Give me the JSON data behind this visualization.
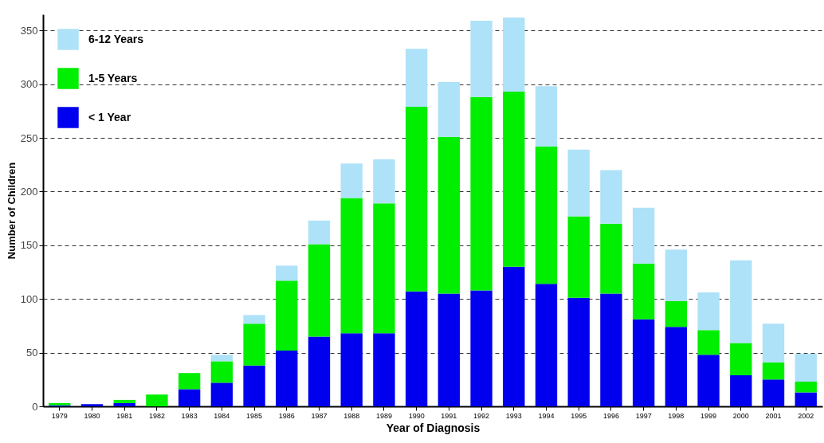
{
  "chart_data": {
    "type": "bar",
    "stacked": true,
    "xlabel": "Year of Diagnosis",
    "ylabel": "Number of Children",
    "categories": [
      "1979",
      "1980",
      "1981",
      "1982",
      "1983",
      "1984",
      "1985",
      "1986",
      "1987",
      "1988",
      "1989",
      "1990",
      "1991",
      "1992",
      "1993",
      "1994",
      "1995",
      "1996",
      "1997",
      "1998",
      "1999",
      "2000",
      "2001",
      "2002"
    ],
    "series": [
      {
        "name": "< 1 Year",
        "color": "#0000ee",
        "values": [
          1,
          2,
          3,
          0,
          16,
          22,
          38,
          52,
          65,
          68,
          68,
          107,
          105,
          108,
          130,
          114,
          101,
          105,
          81,
          74,
          48,
          29,
          25,
          13
        ]
      },
      {
        "name": "1-5 Years",
        "color": "#00ee00",
        "values": [
          2,
          0,
          3,
          11,
          15,
          20,
          39,
          65,
          86,
          126,
          121,
          172,
          146,
          180,
          163,
          128,
          76,
          65,
          52,
          24,
          23,
          30,
          16,
          10
        ]
      },
      {
        "name": "6-12 Years",
        "color": "#aee2f8",
        "values": [
          0,
          0,
          0,
          0,
          0,
          6,
          8,
          14,
          22,
          32,
          41,
          54,
          51,
          71,
          69,
          56,
          62,
          50,
          52,
          48,
          35,
          77,
          36,
          26
        ]
      }
    ],
    "ylim": [
      0,
      365
    ],
    "yticks": [
      0,
      50,
      100,
      150,
      200,
      250,
      300,
      350
    ],
    "grid": "y",
    "legend": "top left"
  }
}
